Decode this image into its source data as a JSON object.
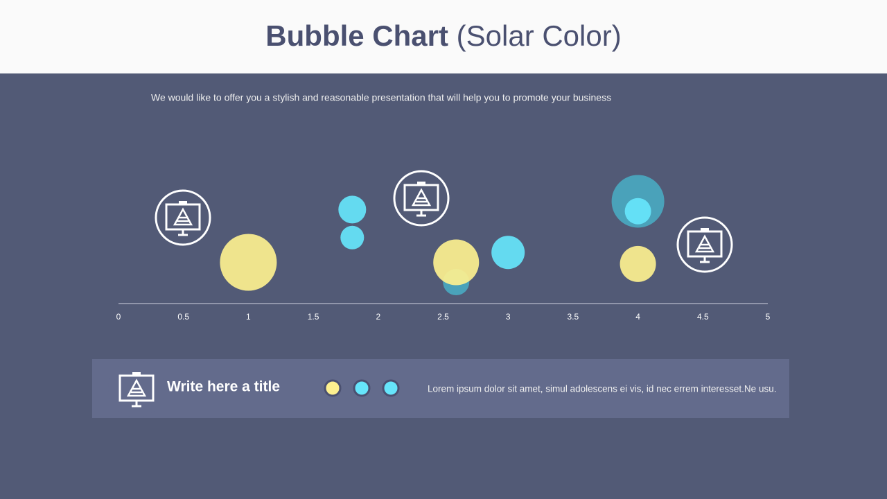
{
  "header": {
    "title_bold": "Bubble Chart",
    "title_rest": "(Solar Color)"
  },
  "subtitle": "We would like to offer you a stylish and reasonable presentation that will help you to promote your business",
  "chart_data": {
    "type": "bubble",
    "xlim": [
      0,
      5
    ],
    "xticks": [
      0,
      0.5,
      1,
      1.5,
      2,
      2.5,
      3,
      3.5,
      4,
      4.5,
      5
    ],
    "ylim": [
      0,
      10
    ],
    "series": [
      {
        "color": "#4aa8c0",
        "x": [
          2.6,
          4
        ],
        "values": [
          1.3,
          6.2
        ],
        "sizes": [
          19,
          38
        ]
      },
      {
        "color": "#fdf08f",
        "x": [
          1,
          2.6,
          4
        ],
        "values": [
          2.5,
          2.5,
          2.4
        ],
        "sizes": [
          41,
          33,
          26
        ]
      },
      {
        "color": "#66e5fb",
        "x": [
          1.8,
          1.8,
          3,
          4
        ],
        "values": [
          5.7,
          4.0,
          3.1,
          5.6
        ],
        "sizes": [
          20,
          17,
          24,
          19
        ]
      }
    ]
  },
  "panel": {
    "title": "Write here a title",
    "text": "Lorem ipsum dolor sit amet, simul adolescens ei vis, id nec errem interesset.Ne usu."
  }
}
